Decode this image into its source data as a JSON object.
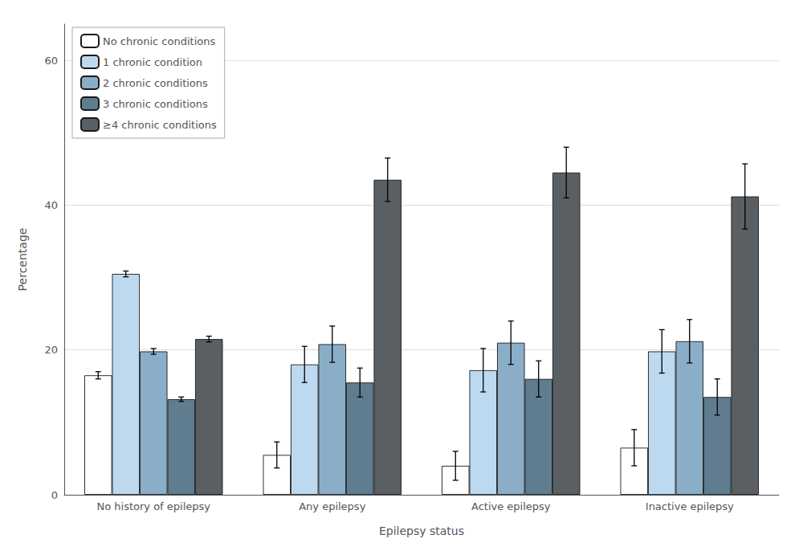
{
  "chart_data": {
    "type": "bar",
    "xlabel": "Epilepsy status",
    "ylabel": "Percentage",
    "categories": [
      "No history of epilepsy",
      "Any epilepsy",
      "Active epilepsy",
      "Inactive epilepsy"
    ],
    "series": [
      {
        "name": "No chronic conditions",
        "color": "#ffffff",
        "values": [
          16.5,
          5.5,
          4.0,
          6.5
        ],
        "errors": [
          0.5,
          1.8,
          2.0,
          2.5
        ]
      },
      {
        "name": "1 chronic condition",
        "color": "#bdd9f0",
        "values": [
          30.5,
          18.0,
          17.2,
          19.8
        ],
        "errors": [
          0.4,
          2.5,
          3.0,
          3.0
        ]
      },
      {
        "name": "2 chronic conditions",
        "color": "#8aaec8",
        "values": [
          19.8,
          20.8,
          21.0,
          21.2
        ],
        "errors": [
          0.4,
          2.5,
          3.0,
          3.0
        ]
      },
      {
        "name": "3 chronic conditions",
        "color": "#607d90",
        "values": [
          13.2,
          15.5,
          16.0,
          13.5
        ],
        "errors": [
          0.3,
          2.0,
          2.5,
          2.5
        ]
      },
      {
        "name": "≥4 chronic conditions",
        "color": "#5a5f63",
        "values": [
          21.5,
          43.5,
          44.5,
          41.2
        ],
        "errors": [
          0.4,
          3.0,
          3.5,
          4.5
        ]
      }
    ],
    "ylim": [
      0,
      65
    ],
    "yticks": [
      0,
      20,
      40,
      60
    ],
    "grid": true,
    "legend": "upper left"
  }
}
